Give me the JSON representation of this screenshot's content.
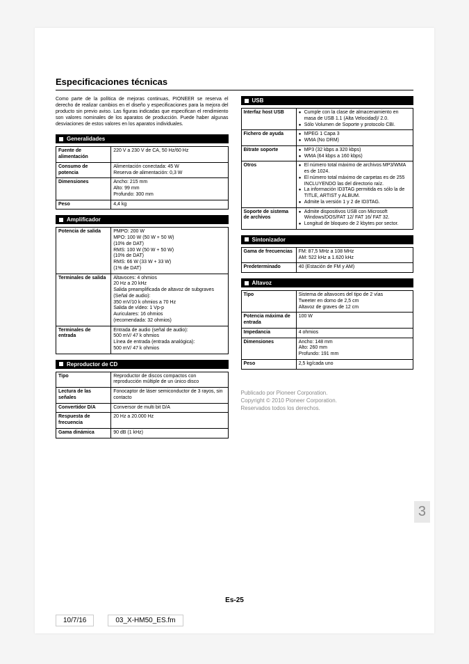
{
  "title": "Especificaciones técnicas",
  "intro": "Como parte de la política de mejoras continuas, PIONEER se reserva el derecho de realizar cambios en el diseño y especificaciones para la mejora del producto sin previo aviso. Las figuras indicadas que especifican el rendimiento son valores nominales de los aparatos de producción. Puede haber algunas desviaciones de estos valores en los aparatos individuales.",
  "sections": {
    "generalidades": {
      "title": "Generalidades",
      "rows": [
        {
          "label": "Fuente de alimentación",
          "value": "220 V a 230 V de CA, 50 Hz/60 Hz"
        },
        {
          "label": "Consumo de potencia",
          "value": "Alimentación conectada: 45 W\nReserva de alimentación: 0,3 W"
        },
        {
          "label": "Dimensiones",
          "value": "Ancho: 215 mm\nAlto: 99 mm\nProfundo: 300 mm"
        },
        {
          "label": "Peso",
          "value": "4,4 kg"
        }
      ]
    },
    "amplificador": {
      "title": "Amplificador",
      "rows": [
        {
          "label": "Potencia de salida",
          "value": "PMPO: 200 W\nMPO: 100 W (50 W + 50 W)\n(10% de DAT)\nRMS: 100 W (50 W + 50 W)\n(10% de DAT)\nRMS: 66 W (33 W + 33 W)\n(1% de DAT)"
        },
        {
          "label": "Terminales de salida",
          "value": "Altavoces: 4 ohmios\n20 Hz a 20 kHz\nSalida preamplificada de altavoz de subgraves (Señal de audio):\n350 mV/10 k ohmios a 70 Hz\nSalida de vídeo: 1 Vp-p\nAuriculares: 16 ohmios\n(recomendada: 32 ohmios)"
        },
        {
          "label": "Terminales de entrada",
          "value": "Entrada de audio (señal de audio):\n500 mV/ 47 k ohmios\nLínea de entrada (entrada analógica):\n500 mV/ 47 k ohmios"
        }
      ]
    },
    "cd": {
      "title": "Reproductor de CD",
      "rows": [
        {
          "label": "Tipo",
          "value": "Reproductor de discos compactos con reproducción múltiple de un único disco"
        },
        {
          "label": "Lectura de las señales",
          "value": "Fonocaptor de láser semiconductor de 3 rayos, sin contacto"
        },
        {
          "label": "Convertidor D/A",
          "value": "Conversor de multi bit D/A"
        },
        {
          "label": "Respuesta de frecuencia",
          "value": "20 Hz a 20.000 Hz"
        },
        {
          "label": "Gama dinámica",
          "value": "90 dB (1 kHz)"
        }
      ]
    },
    "usb": {
      "title": "USB",
      "rows": [
        {
          "label": "Interfaz host USB",
          "bullets": [
            "Cumple con la clase de almacenamiento en masa de USB 1.1 (Alta Velocidad)/ 2.0.",
            "Sólo Volumen de Soporte y protocolo CBI."
          ]
        },
        {
          "label": "Fichero de ayuda",
          "bullets": [
            "MPEG 1 Capa 3",
            "WMA (No DRM)"
          ]
        },
        {
          "label": "Bitrate soporte",
          "bullets": [
            "MP3 (32 kbps a 320 kbps)",
            "WMA (64 kbps a 160 kbps)"
          ]
        },
        {
          "label": "Otros",
          "bullets": [
            "El número total máximo de archivos MP3/WMA es de 1024.",
            "El número total máximo de carpetas es de 255 INCLUYENDO las del directorio raíz.",
            "La información ID3TAG permitida es sólo la de TITLE, ARTIST y ALBUM.",
            "Admite la versión 1 y 2 de ID3TAG."
          ]
        },
        {
          "label": "Soporte de sistema de archivos",
          "bullets": [
            "Admite dispositivos USB con Microsoft Windows/DOS/FAT 12/ FAT 16/ FAT 32.",
            "Longitud de bloqueo de 2 kbytes por sector."
          ]
        }
      ]
    },
    "sintonizador": {
      "title": "Sintonizador",
      "rows": [
        {
          "label": "Gama de frecuencias",
          "value": "FM: 87,5 MHz a 108 MHz\nAM: 522 kHz a 1.620 kHz"
        },
        {
          "label": "Predeterminado",
          "value": "40 (Estación de FM y AM)"
        }
      ]
    },
    "altavoz": {
      "title": "Altavoz",
      "rows": [
        {
          "label": "Tipo",
          "value": "Sistema de altavoces del tipo de 2 vías\nTweeter en domo de 2,5 cm\nAltavoz de graves de 12 cm"
        },
        {
          "label": "Potencia máxima de entrada",
          "value": "100 W"
        },
        {
          "label": "Impedancia",
          "value": "4 ohmios"
        },
        {
          "label": "Dimensiones",
          "value": "Ancho: 148 mm\nAlto: 260 mm\nProfundo: 191 mm"
        },
        {
          "label": "Peso",
          "value": "2,5 kg/cada uno"
        }
      ]
    }
  },
  "copyright": {
    "line1": "Publicado por Pioneer Corporation.",
    "line2": "Copyright © 2010 Pioneer Corporation.",
    "line3": "Reservados todos los derechos."
  },
  "side_page_number": "3",
  "footer_page": "Es-25",
  "footer_bar": {
    "date": "10/7/16",
    "file": "03_X-HM50_ES.fm"
  },
  "style": {
    "background_color": "#f5f5f5",
    "page_color": "#ffffff",
    "text_color": "#000000",
    "header_bg": "#000000",
    "header_fg": "#ffffff",
    "copyright_color": "#888888",
    "border_color": "#000000",
    "title_fontsize": 13,
    "body_fontsize": 7,
    "section_header_fontsize": 8
  }
}
